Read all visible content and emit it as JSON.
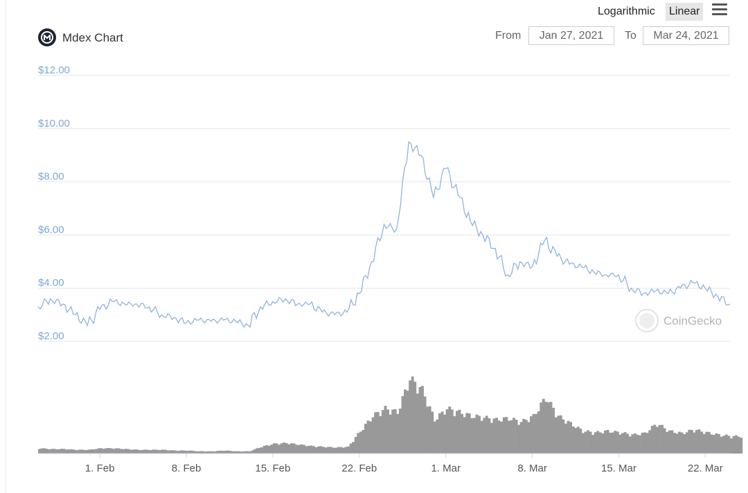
{
  "header": {
    "title": "Mdex Chart",
    "logarithmic_label": "Logarithmic",
    "linear_label": "Linear",
    "from_label": "From",
    "from_value": "Jan 27, 2021",
    "to_label": "To",
    "to_value": "Mar 24, 2021"
  },
  "credit": "CoinGecko",
  "colors": {
    "price_line": "#8fb3e0",
    "volume_bar": "#999999",
    "axis_label": "#7fa7d2",
    "active_scale_bg": "#e6e6e6"
  },
  "chart_data": {
    "type": "line",
    "title": "Mdex Chart",
    "xlabel": "",
    "ylabel": "",
    "xlim": [
      "2021-01-27",
      "2021-03-24"
    ],
    "ylim": [
      2,
      12
    ],
    "y_ticks": [
      "$2.00",
      "$4.00",
      "$6.00",
      "$8.00",
      "$10.00",
      "$12.00"
    ],
    "x_ticks": [
      {
        "date": "2021-02-01",
        "label": "1. Feb"
      },
      {
        "date": "2021-02-08",
        "label": "8. Feb"
      },
      {
        "date": "2021-02-15",
        "label": "15. Feb"
      },
      {
        "date": "2021-02-22",
        "label": "22. Feb"
      },
      {
        "date": "2021-03-01",
        "label": "1. Mar"
      },
      {
        "date": "2021-03-08",
        "label": "8. Mar"
      },
      {
        "date": "2021-03-15",
        "label": "15. Mar"
      },
      {
        "date": "2021-03-22",
        "label": "22. Mar"
      }
    ],
    "grid": true,
    "legend": "none",
    "series": [
      {
        "kind": "price",
        "points": [
          [
            "2021-01-27",
            3.3
          ],
          [
            "2021-01-28",
            3.6
          ],
          [
            "2021-01-29",
            3.4
          ],
          [
            "2021-01-30",
            3.0
          ],
          [
            "2021-01-31",
            2.6
          ],
          [
            "2021-02-01",
            3.2
          ],
          [
            "2021-02-02",
            3.5
          ],
          [
            "2021-02-03",
            3.4
          ],
          [
            "2021-02-04",
            3.4
          ],
          [
            "2021-02-05",
            3.3
          ],
          [
            "2021-02-06",
            3.0
          ],
          [
            "2021-02-07",
            2.9
          ],
          [
            "2021-02-08",
            2.7
          ],
          [
            "2021-02-09",
            2.8
          ],
          [
            "2021-02-10",
            2.75
          ],
          [
            "2021-02-11",
            2.8
          ],
          [
            "2021-02-12",
            2.75
          ],
          [
            "2021-02-13",
            2.6
          ],
          [
            "2021-02-14",
            3.3
          ],
          [
            "2021-02-15",
            3.5
          ],
          [
            "2021-02-16",
            3.6
          ],
          [
            "2021-02-17",
            3.4
          ],
          [
            "2021-02-18",
            3.4
          ],
          [
            "2021-02-19",
            3.1
          ],
          [
            "2021-02-20",
            3.0
          ],
          [
            "2021-02-21",
            3.1
          ],
          [
            "2021-02-22",
            3.8
          ],
          [
            "2021-02-23",
            5.0
          ],
          [
            "2021-02-24",
            6.4
          ],
          [
            "2021-02-25",
            6.2
          ],
          [
            "2021-02-26",
            9.5
          ],
          [
            "2021-02-27",
            9.0
          ],
          [
            "2021-02-28",
            7.4
          ],
          [
            "2021-03-01",
            8.5
          ],
          [
            "2021-03-02",
            7.5
          ],
          [
            "2021-03-03",
            6.5
          ],
          [
            "2021-03-04",
            6.0
          ],
          [
            "2021-03-05",
            5.5
          ],
          [
            "2021-03-06",
            4.5
          ],
          [
            "2021-03-07",
            5.0
          ],
          [
            "2021-03-08",
            4.8
          ],
          [
            "2021-03-09",
            5.8
          ],
          [
            "2021-03-10",
            5.2
          ],
          [
            "2021-03-11",
            4.9
          ],
          [
            "2021-03-12",
            4.8
          ],
          [
            "2021-03-13",
            4.6
          ],
          [
            "2021-03-14",
            4.5
          ],
          [
            "2021-03-15",
            4.5
          ],
          [
            "2021-03-16",
            4.0
          ],
          [
            "2021-03-17",
            3.8
          ],
          [
            "2021-03-18",
            3.9
          ],
          [
            "2021-03-19",
            3.8
          ],
          [
            "2021-03-20",
            4.0
          ],
          [
            "2021-03-21",
            4.2
          ],
          [
            "2021-03-22",
            4.0
          ],
          [
            "2021-03-23",
            3.7
          ],
          [
            "2021-03-24",
            3.4
          ]
        ]
      },
      {
        "kind": "volume",
        "y_axis_labels": "none",
        "points": [
          [
            "2021-01-27",
            0.07
          ],
          [
            "2021-01-28",
            0.06
          ],
          [
            "2021-01-29",
            0.06
          ],
          [
            "2021-01-30",
            0.05
          ],
          [
            "2021-01-31",
            0.05
          ],
          [
            "2021-02-01",
            0.07
          ],
          [
            "2021-02-02",
            0.07
          ],
          [
            "2021-02-03",
            0.06
          ],
          [
            "2021-02-04",
            0.05
          ],
          [
            "2021-02-05",
            0.05
          ],
          [
            "2021-02-06",
            0.05
          ],
          [
            "2021-02-07",
            0.04
          ],
          [
            "2021-02-08",
            0.04
          ],
          [
            "2021-02-09",
            0.03
          ],
          [
            "2021-02-10",
            0.03
          ],
          [
            "2021-02-11",
            0.04
          ],
          [
            "2021-02-12",
            0.03
          ],
          [
            "2021-02-13",
            0.03
          ],
          [
            "2021-02-14",
            0.09
          ],
          [
            "2021-02-15",
            0.13
          ],
          [
            "2021-02-16",
            0.14
          ],
          [
            "2021-02-17",
            0.12
          ],
          [
            "2021-02-18",
            0.1
          ],
          [
            "2021-02-19",
            0.09
          ],
          [
            "2021-02-20",
            0.08
          ],
          [
            "2021-02-21",
            0.09
          ],
          [
            "2021-02-22",
            0.3
          ],
          [
            "2021-02-23",
            0.5
          ],
          [
            "2021-02-24",
            0.6
          ],
          [
            "2021-02-25",
            0.55
          ],
          [
            "2021-02-26",
            1.0
          ],
          [
            "2021-02-27",
            0.85
          ],
          [
            "2021-02-28",
            0.45
          ],
          [
            "2021-03-01",
            0.6
          ],
          [
            "2021-03-02",
            0.55
          ],
          [
            "2021-03-03",
            0.5
          ],
          [
            "2021-03-04",
            0.48
          ],
          [
            "2021-03-05",
            0.45
          ],
          [
            "2021-03-06",
            0.47
          ],
          [
            "2021-03-07",
            0.42
          ],
          [
            "2021-03-08",
            0.5
          ],
          [
            "2021-03-09",
            0.75
          ],
          [
            "2021-03-10",
            0.5
          ],
          [
            "2021-03-11",
            0.4
          ],
          [
            "2021-03-12",
            0.3
          ],
          [
            "2021-03-13",
            0.28
          ],
          [
            "2021-03-14",
            0.3
          ],
          [
            "2021-03-15",
            0.28
          ],
          [
            "2021-03-16",
            0.25
          ],
          [
            "2021-03-17",
            0.27
          ],
          [
            "2021-03-18",
            0.4
          ],
          [
            "2021-03-19",
            0.3
          ],
          [
            "2021-03-20",
            0.27
          ],
          [
            "2021-03-21",
            0.32
          ],
          [
            "2021-03-22",
            0.28
          ],
          [
            "2021-03-23",
            0.25
          ],
          [
            "2021-03-24",
            0.23
          ]
        ]
      }
    ]
  }
}
